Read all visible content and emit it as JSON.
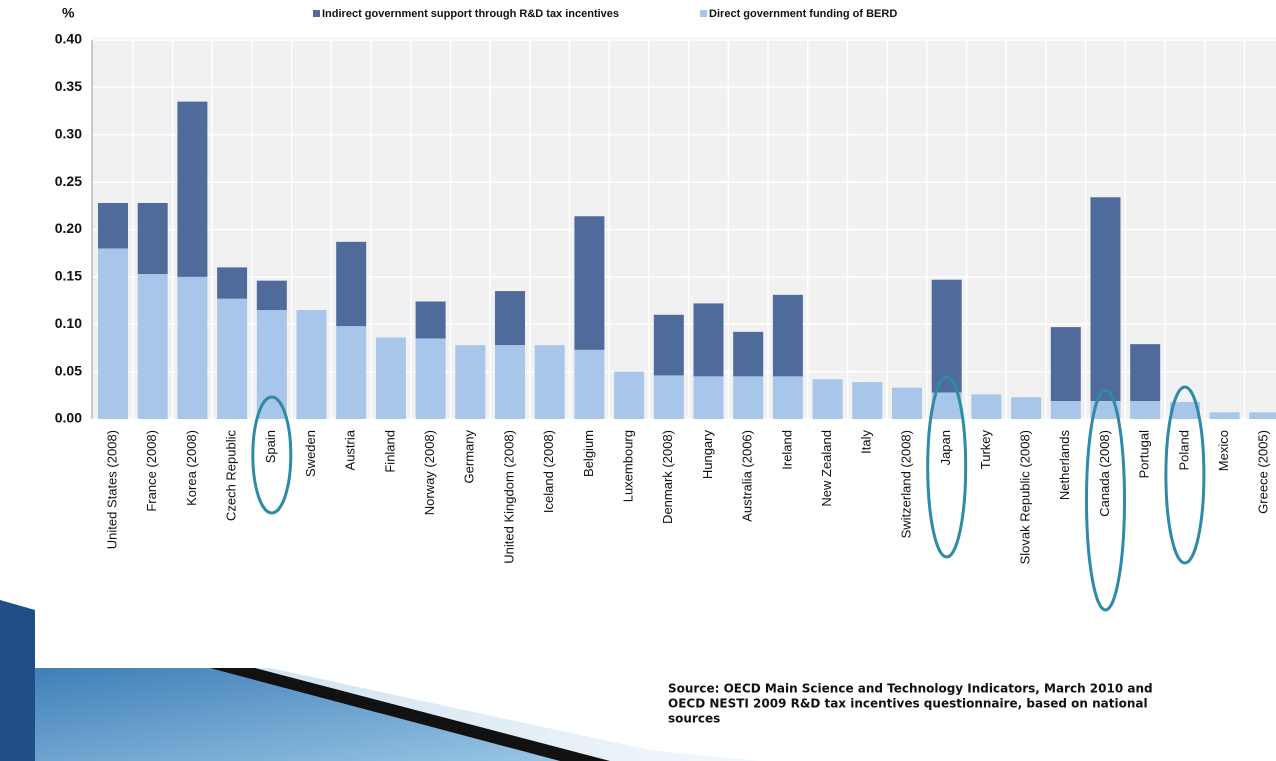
{
  "chart_data": {
    "type": "stacked_bar",
    "y_axis_label": "%",
    "categories": [
      "United States (2008)",
      "France (2008)",
      "Korea (2008)",
      "Czech Republic",
      "Spain",
      "Sweden",
      "Austria",
      "Finland",
      "Norway (2008)",
      "Germany",
      "United Kingdom (2008)",
      "Iceland (2008)",
      "Belgium",
      "Luxembourg",
      "Denmark (2008)",
      "Hungary",
      "Australia (2006)",
      "Ireland",
      "New Zealand",
      "Italy",
      "Switzerland (2008)",
      "Japan",
      "Turkey",
      "Slovak Republic (2008)",
      "Netherlands",
      "Canada (2008)",
      "Portugal",
      "Poland",
      "Mexico",
      "Greece (2005)"
    ],
    "series": [
      {
        "name": "Indirect government support through R&D tax incentives",
        "color": "#4f6b9b",
        "values": [
          0.048,
          0.075,
          0.185,
          0.033,
          0.031,
          0,
          0.089,
          0,
          0.039,
          0,
          0.057,
          0,
          0.141,
          0,
          0.064,
          0.077,
          0.047,
          0.086,
          0,
          0,
          0,
          0.119,
          0,
          0,
          0.078,
          0.215,
          0.06,
          0,
          0,
          0
        ]
      },
      {
        "name": "Direct government funding of BERD",
        "color": "#a8c5ea",
        "values": [
          0.18,
          0.153,
          0.15,
          0.127,
          0.115,
          0.115,
          0.098,
          0.086,
          0.085,
          0.078,
          0.078,
          0.078,
          0.073,
          0.05,
          0.046,
          0.045,
          0.045,
          0.045,
          0.042,
          0.039,
          0.033,
          0.028,
          0.026,
          0.023,
          0.019,
          0.019,
          0.019,
          0.018,
          0.007,
          0.007
        ]
      }
    ],
    "ylim": [
      0,
      0.4
    ],
    "yticks": [
      {
        "value": 0,
        "label": "0.00"
      },
      0.05,
      {
        "value": 0.1,
        "label": "0.10"
      },
      0.15,
      {
        "value": 0.2,
        "label": "0.20"
      },
      0.25,
      {
        "value": 0.3,
        "label": "0.30"
      },
      0.35,
      {
        "value": 0.4,
        "label": "0.40"
      }
    ],
    "grid": true,
    "legend": "top",
    "source": [
      "Source: OECD Main Science and Technology Indicators, March 2010 and",
      "OECD NESTI 2009 R&D tax incentives  questionnaire, based on national",
      "sources"
    ]
  }
}
